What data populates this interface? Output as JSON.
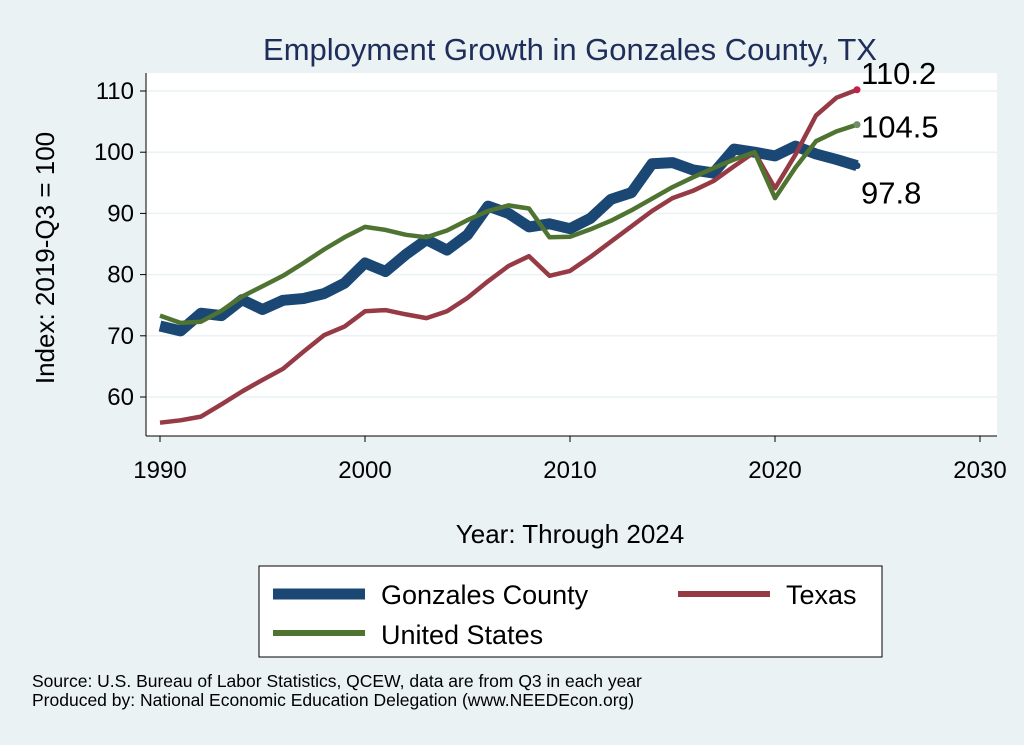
{
  "chart_data": {
    "type": "line",
    "title": "Employment Growth in Gonzales County, TX",
    "xlabel": "Year: Through 2024",
    "ylabel": "Index: 2019-Q3 = 100",
    "xlim": [
      1990,
      2030
    ],
    "ylim": [
      53,
      113
    ],
    "xticks": [
      1990,
      2000,
      2010,
      2020,
      2030
    ],
    "yticks": [
      60,
      70,
      80,
      90,
      100,
      110
    ],
    "grid": true,
    "legend_position": "bottom",
    "x": [
      1990,
      1991,
      1992,
      1993,
      1994,
      1995,
      1996,
      1997,
      1998,
      1999,
      2000,
      2001,
      2002,
      2003,
      2004,
      2005,
      2006,
      2007,
      2008,
      2009,
      2010,
      2011,
      2012,
      2013,
      2014,
      2015,
      2016,
      2017,
      2018,
      2019,
      2020,
      2021,
      2022,
      2023,
      2024
    ],
    "series": [
      {
        "name": "Gonzales  County",
        "color": "#1a4773",
        "end_label": "97.8",
        "values": [
          71.6,
          70.8,
          73.7,
          73.3,
          75.9,
          74.3,
          75.8,
          76.1,
          76.9,
          78.6,
          81.9,
          80.5,
          83.3,
          85.7,
          84.0,
          86.5,
          91.2,
          90.0,
          87.8,
          88.3,
          87.5,
          89.2,
          92.3,
          93.4,
          98.1,
          98.3,
          97.1,
          96.6,
          100.5,
          100.0,
          99.4,
          101.0,
          99.7,
          98.8,
          97.8
        ]
      },
      {
        "name": "Texas",
        "color": "#963a45",
        "end_label": "110.2",
        "values": [
          55.8,
          56.2,
          56.8,
          58.8,
          60.9,
          62.8,
          64.6,
          67.4,
          70.1,
          71.5,
          74.0,
          74.2,
          73.5,
          72.9,
          74.0,
          76.2,
          78.9,
          81.4,
          83.0,
          79.8,
          80.6,
          82.9,
          85.4,
          87.9,
          90.4,
          92.5,
          93.7,
          95.3,
          97.7,
          100.0,
          94.1,
          99.6,
          106.0,
          108.9,
          110.2
        ]
      },
      {
        "name": "United States",
        "color": "#4f7331",
        "end_label": "104.5",
        "values": [
          73.3,
          72.1,
          72.3,
          74.1,
          76.4,
          78.1,
          79.8,
          81.9,
          84.1,
          86.1,
          87.8,
          87.3,
          86.5,
          86.1,
          87.2,
          88.9,
          90.4,
          91.3,
          90.8,
          86.1,
          86.2,
          87.4,
          88.8,
          90.5,
          92.4,
          94.3,
          95.9,
          97.4,
          98.8,
          100.0,
          92.5,
          97.5,
          101.8,
          103.4,
          104.5
        ]
      }
    ]
  },
  "legend": {
    "items": [
      {
        "label": "Gonzales  County",
        "color": "#1a4773"
      },
      {
        "label": "Texas",
        "color": "#963a45"
      },
      {
        "label": "United States",
        "color": "#4f7331"
      }
    ]
  },
  "source": {
    "line1": "Source: U.S. Bureau of Labor Statistics, QCEW, data are from Q3 in each year",
    "line2": "Produced by: National Economic Education Delegation (www.NEEDEcon.org)"
  }
}
